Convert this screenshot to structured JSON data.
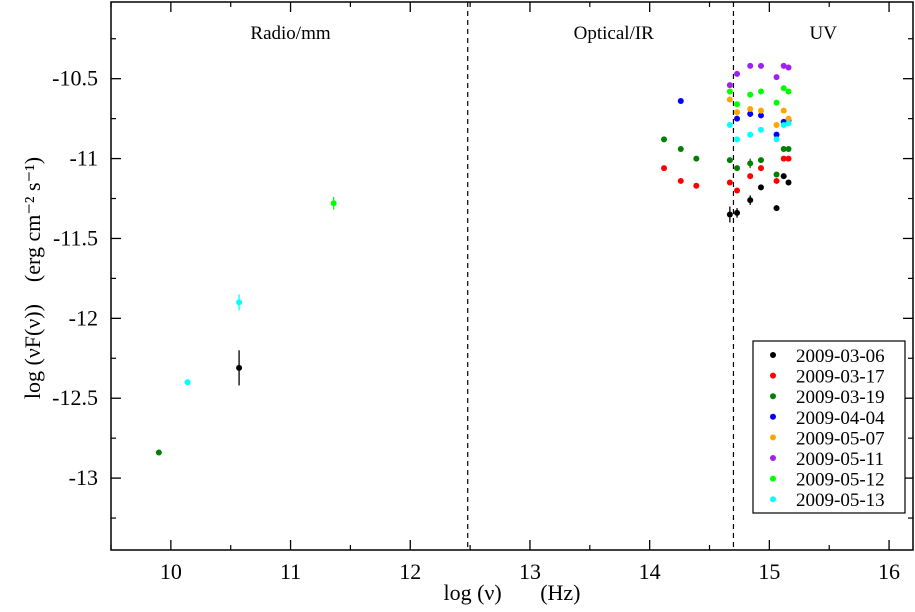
{
  "chart_data": {
    "type": "scatter",
    "xlabel": "log (ν)       (Hz)",
    "ylabel": "log (νF(ν))    (erg cm⁻² s⁻¹)",
    "xlim": [
      9.5,
      16.2
    ],
    "ylim": [
      -13.45,
      -10.02
    ],
    "x_ticks": [
      {
        "value": 10,
        "label": "10"
      },
      {
        "value": 11,
        "label": "11"
      },
      {
        "value": 12,
        "label": "12"
      },
      {
        "value": 13,
        "label": "13"
      },
      {
        "value": 14,
        "label": "14"
      },
      {
        "value": 15,
        "label": "15"
      },
      {
        "value": 16,
        "label": "16"
      }
    ],
    "y_ticks": [
      {
        "value": -10.5,
        "label": "-10.5"
      },
      {
        "value": -11,
        "label": "-11"
      },
      {
        "value": -11.5,
        "label": "-11.5"
      },
      {
        "value": -12,
        "label": "-12"
      },
      {
        "value": -12.5,
        "label": "-12.5"
      },
      {
        "value": -13,
        "label": "-13"
      }
    ],
    "grid": false,
    "legend_position": "bottom-right",
    "regions": [
      {
        "label": "Radio/mm",
        "x_center": 11.0
      },
      {
        "label": "Optical/IR",
        "x_center": 13.7
      },
      {
        "label": "UV",
        "x_center": 15.45
      }
    ],
    "dividers": [
      12.48,
      14.7
    ],
    "series": [
      {
        "name": "2009-03-06",
        "color": "#000000",
        "points": [
          {
            "x": 10.57,
            "y": -12.31,
            "err": 0.11
          },
          {
            "x": 14.67,
            "y": -11.35,
            "err": 0.05
          },
          {
            "x": 14.73,
            "y": -11.34,
            "err": 0.03
          },
          {
            "x": 14.84,
            "y": -11.26,
            "err": 0.03
          },
          {
            "x": 14.93,
            "y": -11.18
          },
          {
            "x": 15.06,
            "y": -11.31
          },
          {
            "x": 15.12,
            "y": -11.11
          },
          {
            "x": 15.16,
            "y": -11.15
          }
        ]
      },
      {
        "name": "2009-03-17",
        "color": "#ff0000",
        "points": [
          {
            "x": 14.12,
            "y": -11.06
          },
          {
            "x": 14.26,
            "y": -11.14
          },
          {
            "x": 14.39,
            "y": -11.17
          },
          {
            "x": 14.67,
            "y": -11.15
          },
          {
            "x": 14.73,
            "y": -11.2
          },
          {
            "x": 14.84,
            "y": -11.11
          },
          {
            "x": 14.93,
            "y": -11.06
          },
          {
            "x": 15.06,
            "y": -11.14
          },
          {
            "x": 15.12,
            "y": -11.0
          },
          {
            "x": 15.16,
            "y": -11.0
          }
        ]
      },
      {
        "name": "2009-03-19",
        "color": "#008000",
        "points": [
          {
            "x": 9.9,
            "y": -12.84
          },
          {
            "x": 14.12,
            "y": -10.88
          },
          {
            "x": 14.26,
            "y": -10.94
          },
          {
            "x": 14.39,
            "y": -11.0
          },
          {
            "x": 14.67,
            "y": -11.01
          },
          {
            "x": 14.73,
            "y": -11.06
          },
          {
            "x": 14.84,
            "y": -11.03,
            "err": 0.03
          },
          {
            "x": 14.93,
            "y": -11.01
          },
          {
            "x": 15.06,
            "y": -11.1
          },
          {
            "x": 15.12,
            "y": -10.94
          },
          {
            "x": 15.16,
            "y": -10.94
          }
        ]
      },
      {
        "name": "2009-04-04",
        "color": "#0000ff",
        "points": [
          {
            "x": 14.26,
            "y": -10.64
          },
          {
            "x": 14.73,
            "y": -10.75
          },
          {
            "x": 14.84,
            "y": -10.72,
            "err": 0.02
          },
          {
            "x": 14.93,
            "y": -10.73
          },
          {
            "x": 15.06,
            "y": -10.85
          },
          {
            "x": 15.12,
            "y": -10.77
          },
          {
            "x": 15.16,
            "y": -10.76
          }
        ]
      },
      {
        "name": "2009-05-07",
        "color": "#ffa500",
        "points": [
          {
            "x": 14.67,
            "y": -10.63
          },
          {
            "x": 14.73,
            "y": -10.71
          },
          {
            "x": 14.84,
            "y": -10.69
          },
          {
            "x": 14.93,
            "y": -10.7
          },
          {
            "x": 15.06,
            "y": -10.79
          },
          {
            "x": 15.12,
            "y": -10.7
          },
          {
            "x": 15.16,
            "y": -10.75
          }
        ]
      },
      {
        "name": "2009-05-11",
        "color": "#a020f0",
        "points": [
          {
            "x": 14.67,
            "y": -10.54
          },
          {
            "x": 14.73,
            "y": -10.47
          },
          {
            "x": 14.84,
            "y": -10.42
          },
          {
            "x": 14.93,
            "y": -10.42
          },
          {
            "x": 15.06,
            "y": -10.49
          },
          {
            "x": 15.12,
            "y": -10.42
          },
          {
            "x": 15.16,
            "y": -10.43
          }
        ]
      },
      {
        "name": "2009-05-12",
        "color": "#00ff00",
        "points": [
          {
            "x": 11.36,
            "y": -11.28,
            "err": 0.04
          },
          {
            "x": 14.67,
            "y": -10.58
          },
          {
            "x": 14.73,
            "y": -10.66
          },
          {
            "x": 14.84,
            "y": -10.6
          },
          {
            "x": 14.93,
            "y": -10.58
          },
          {
            "x": 15.06,
            "y": -10.65
          },
          {
            "x": 15.12,
            "y": -10.56
          },
          {
            "x": 15.16,
            "y": -10.58
          }
        ]
      },
      {
        "name": "2009-05-13",
        "color": "#00ffff",
        "points": [
          {
            "x": 10.14,
            "y": -12.4
          },
          {
            "x": 10.57,
            "y": -11.9,
            "err": 0.05
          },
          {
            "x": 14.67,
            "y": -10.79
          },
          {
            "x": 14.73,
            "y": -10.88
          },
          {
            "x": 14.84,
            "y": -10.85
          },
          {
            "x": 14.93,
            "y": -10.82
          },
          {
            "x": 15.06,
            "y": -10.88
          },
          {
            "x": 15.12,
            "y": -10.79
          },
          {
            "x": 15.16,
            "y": -10.78
          }
        ]
      }
    ]
  }
}
